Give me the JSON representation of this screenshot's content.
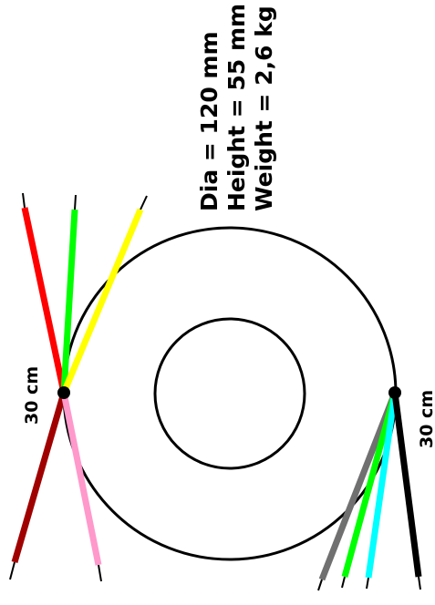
{
  "specs": {
    "diameter": "Dia = 120 mm",
    "height": "Height = 55 mm",
    "weight": "Weight = 2,6 kg"
  },
  "left_lead_length": "30 cm",
  "right_lead_length": "30 cm",
  "colors": {
    "outline": "#000000",
    "red": "#ff0000",
    "green": "#00ff00",
    "yellow": "#ffff00",
    "dark_red": "#a00000",
    "pink": "#ff99cc",
    "gray": "#707070",
    "cyan": "#00ffff",
    "black": "#000000"
  }
}
